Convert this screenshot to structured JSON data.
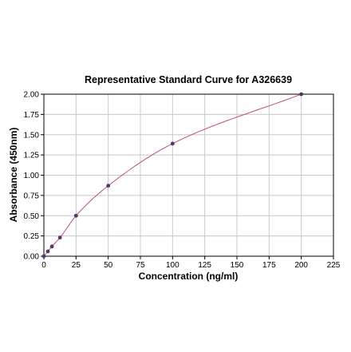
{
  "chart_data": {
    "type": "scatter",
    "title": "Representative Standard Curve for A326639",
    "xlabel": "Concentration (ng/ml)",
    "ylabel": "Absorbance (450nm)",
    "xlim": [
      0,
      225
    ],
    "ylim": [
      0,
      2.0
    ],
    "x_ticks": [
      0,
      25,
      50,
      75,
      100,
      125,
      150,
      175,
      200,
      225
    ],
    "y_ticks": [
      "0.00",
      "0.25",
      "0.50",
      "0.75",
      "1.00",
      "1.25",
      "1.50",
      "1.75",
      "2.00"
    ],
    "grid": true,
    "series": [
      {
        "points": [
          {
            "x": 0,
            "y": 0.0
          },
          {
            "x": 3.125,
            "y": 0.06
          },
          {
            "x": 6.25,
            "y": 0.12
          },
          {
            "x": 12.5,
            "y": 0.23
          },
          {
            "x": 25,
            "y": 0.5
          },
          {
            "x": 50,
            "y": 0.87
          },
          {
            "x": 100,
            "y": 1.39
          },
          {
            "x": 200,
            "y": 2.0
          }
        ],
        "marker_color": "#4a3b6b",
        "curve_color": "#c0506a",
        "fit": "smooth curve"
      }
    ]
  }
}
